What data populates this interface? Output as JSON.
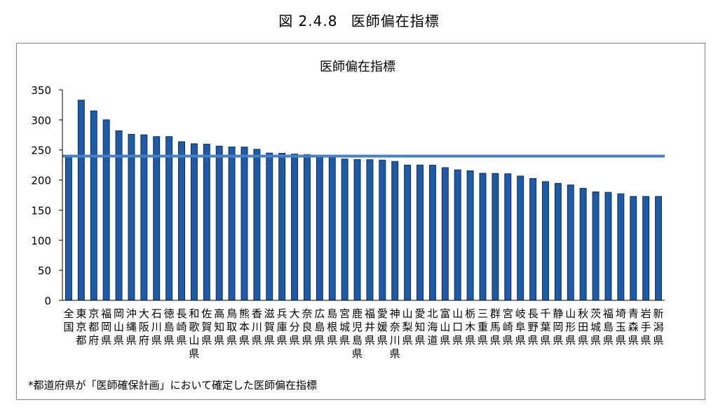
{
  "figure": {
    "number": "図 2.4.8",
    "title": "医師偏在指標"
  },
  "footnote": "*都道府県が「医師確保計画」において確定した医師偏在指標",
  "colors": {
    "bar": "#1f5aa6",
    "bar_edge": "#0b2d5c",
    "reference_line": "#4a7fc1",
    "axis": "#000000",
    "frame": "#7f7f7f"
  },
  "chart_data": {
    "type": "bar",
    "title": "医師偏在指標",
    "xlabel": "",
    "ylabel": "",
    "ylim": [
      0,
      350
    ],
    "yticks": [
      0,
      50,
      100,
      150,
      200,
      250,
      300,
      350
    ],
    "grid": false,
    "legend": "none",
    "categories": [
      "全国",
      "東京都",
      "京都府",
      "福岡県",
      "岡山県",
      "沖縄県",
      "大阪府",
      "石川県",
      "徳島県",
      "長崎県",
      "和歌山県",
      "佐賀県",
      "高知県",
      "鳥取県",
      "熊本県",
      "香川県",
      "滋賀県",
      "兵庫県",
      "大分県",
      "奈良県",
      "広島県",
      "島根県",
      "宮城県",
      "鹿児島県",
      "福井県",
      "愛媛県",
      "神奈川県",
      "山梨県",
      "愛知県",
      "北海道",
      "富山県",
      "山口県",
      "栃木県",
      "三重県",
      "群馬県",
      "宮崎県",
      "岐阜県",
      "長野県",
      "千葉県",
      "静岡県",
      "山形県",
      "秋田県",
      "茨城県",
      "福島県",
      "埼玉県",
      "青森県",
      "岩手県",
      "新潟県"
    ],
    "values": [
      239.8,
      332.8,
      314.9,
      300.1,
      281.9,
      276.0,
      275.2,
      272.2,
      272.2,
      263.7,
      260.3,
      259.7,
      256.4,
      255.0,
      254.8,
      251.1,
      244.8,
      244.4,
      243.1,
      242.3,
      241.4,
      238.7,
      234.9,
      234.1,
      233.8,
      233.1,
      230.9,
      224.9,
      224.9,
      224.7,
      220.6,
      216.9,
      215.3,
      211.2,
      210.9,
      210.4,
      206.6,
      202.5,
      197.3,
      194.5,
      191.8,
      186.3,
      180.3,
      179.5,
      177.1,
      172.7,
      172.7,
      172.7
    ],
    "reference_line": {
      "value": 239.8
    }
  }
}
